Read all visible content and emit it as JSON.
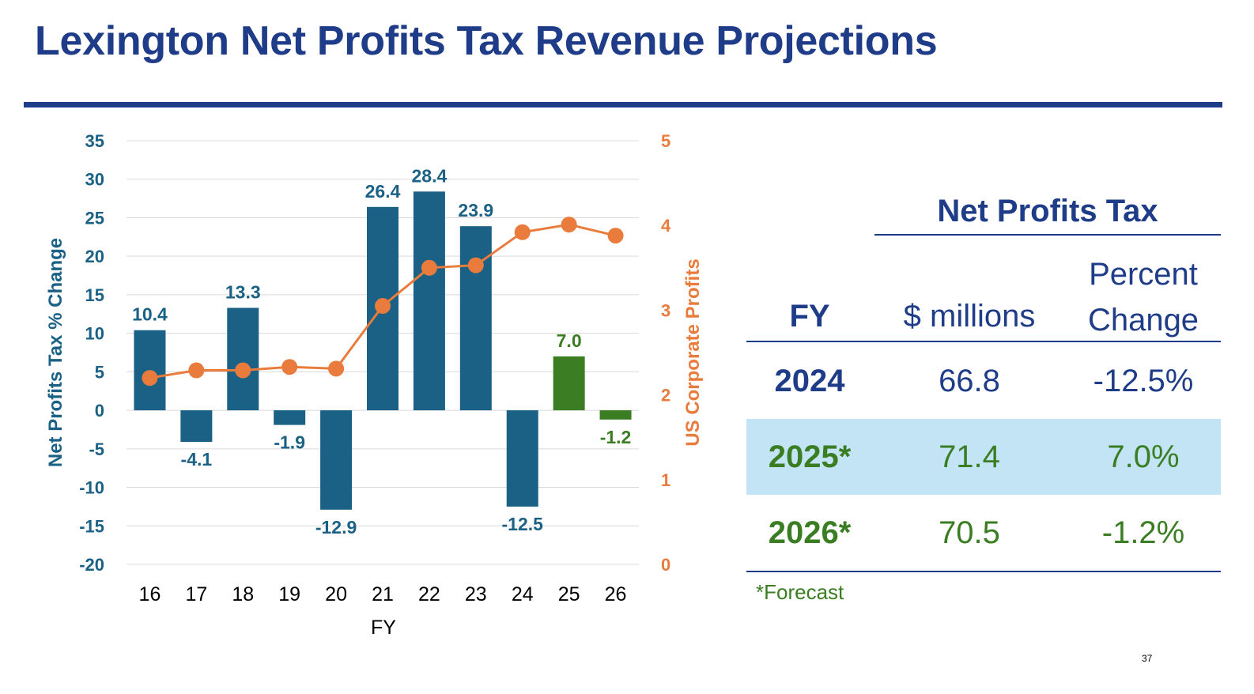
{
  "title": "Lexington Net Profits Tax Revenue Projections",
  "colors": {
    "title": "#1f3c88",
    "bar_actual": "#1a6185",
    "bar_forecast": "#3a7d22",
    "line": "#e97b3c",
    "grid": "#d9d9d9",
    "highlight_row": "#c3e4f5"
  },
  "chart_data": {
    "type": "bar",
    "categories": [
      "16",
      "17",
      "18",
      "19",
      "20",
      "21",
      "22",
      "23",
      "24",
      "25",
      "26"
    ],
    "series": [
      {
        "axis": "left",
        "type": "bar",
        "values": [
          10.4,
          -4.1,
          13.3,
          -1.9,
          -12.9,
          26.4,
          28.4,
          23.9,
          -12.5,
          7.0,
          -1.2
        ],
        "data_labels": [
          "10.4",
          "-4.1",
          "13.3",
          "-1.9",
          "-12.9",
          "26.4",
          "28.4",
          "23.9",
          "-12.5",
          "7.0",
          "-1.2"
        ],
        "forecast": [
          false,
          false,
          false,
          false,
          false,
          false,
          false,
          false,
          false,
          true,
          true
        ]
      },
      {
        "axis": "right",
        "type": "line",
        "values": [
          2.2,
          2.29,
          2.29,
          2.33,
          2.31,
          3.05,
          3.5,
          3.53,
          3.92,
          4.01,
          3.88
        ]
      }
    ],
    "xlabel": "FY",
    "ylabel": "Net Profits Tax % Change",
    "y2label": "US Corporate Profits",
    "ylim": [
      -20,
      35
    ],
    "y2lim": [
      0,
      5
    ],
    "yticks": [
      "35",
      "30",
      "25",
      "20",
      "15",
      "10",
      "5",
      "0",
      "-5",
      "-10",
      "-15",
      "-20"
    ],
    "y2ticks": [
      "5",
      "4",
      "3",
      "2",
      "1",
      "0"
    ],
    "grid": true,
    "legend": "none"
  },
  "table": {
    "group_header": "Net Profits Tax",
    "col_fy": "FY",
    "col_millions": "$ millions",
    "col_percent_line1": "Percent",
    "col_percent_line2": "Change",
    "rows": [
      {
        "fy": "2024",
        "millions": "66.8",
        "percent": "-12.5%"
      },
      {
        "fy": "2025*",
        "millions": "71.4",
        "percent": "7.0%"
      },
      {
        "fy": "2026*",
        "millions": "70.5",
        "percent": "-1.2%"
      }
    ],
    "footnote": "*Forecast"
  },
  "page_number": "37"
}
